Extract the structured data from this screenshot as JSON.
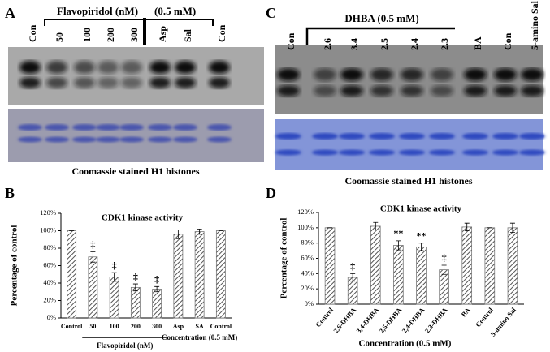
{
  "panels": {
    "a": "A",
    "b": "B",
    "c": "C",
    "d": "D"
  },
  "blot_a": {
    "lanes": [
      "Con",
      "50",
      "100",
      "200",
      "300",
      "Asp",
      "Sal",
      "Con"
    ],
    "group1": "Flavopiridol  (nM)",
    "group2": "(0.5 mM)",
    "caption": "Coomassie stained H1 histones"
  },
  "blot_c": {
    "lanes": [
      "Con",
      "2.6",
      "3.4",
      "2.5",
      "2.4",
      "2.3",
      "BA",
      "Con",
      "5-amino Sal"
    ],
    "group": "DHBA (0.5 mM)",
    "caption": "Coomassie stained H1 histones"
  },
  "chart_data": [
    {
      "type": "bar",
      "title": "CDK1 kinase activity",
      "ylabel": "Percentage of control",
      "categories": [
        "Control",
        "50",
        "100",
        "200",
        "300",
        "Asp",
        "SA",
        "Control"
      ],
      "values": [
        100,
        70,
        47,
        35,
        33,
        96,
        99,
        100
      ],
      "errors": [
        0,
        6,
        5,
        4,
        3,
        5,
        3,
        0
      ],
      "annotations": [
        null,
        "‡",
        "‡",
        "‡",
        "‡",
        null,
        null,
        null
      ],
      "group_labels": [
        "Flavopiridol (nM)",
        "Concentration (0.5 mM)"
      ],
      "color": "#777777",
      "ylim": [
        0,
        120
      ],
      "yticks": [
        {
          "value": 0,
          "label": "0%"
        },
        {
          "value": 20,
          "label": "20%"
        },
        {
          "value": 40,
          "label": "40%"
        },
        {
          "value": 60,
          "label": "60%"
        },
        {
          "value": 80,
          "label": "80%"
        },
        {
          "value": 100,
          "label": "100%"
        },
        {
          "value": 120,
          "label": "120%"
        }
      ]
    },
    {
      "type": "bar",
      "title": "CDK1 kinase activity",
      "ylabel": "Percentage of control",
      "xlabel": "Concentration (0.5 mM)",
      "categories": [
        "Control",
        "2,6-DHBA",
        "3,4-DHBA",
        "2,5-DHBA",
        "2,4-DHBA",
        "2,3-DHBA",
        "BA",
        "Control",
        "5-amino Sal"
      ],
      "values": [
        100,
        35,
        102,
        77,
        75,
        45,
        101,
        100,
        100
      ],
      "errors": [
        0,
        5,
        5,
        6,
        5,
        6,
        5,
        0,
        6
      ],
      "annotations": [
        null,
        "‡",
        null,
        "**",
        "**",
        "‡",
        null,
        null,
        null
      ],
      "color": "#777777",
      "ylim": [
        0,
        120
      ],
      "yticks": [
        {
          "value": 0,
          "label": "0%"
        },
        {
          "value": 20,
          "label": "20%"
        },
        {
          "value": 40,
          "label": "40%"
        },
        {
          "value": 60,
          "label": "60%"
        },
        {
          "value": 80,
          "label": "80%"
        },
        {
          "value": 100,
          "label": "100%"
        },
        {
          "value": 120,
          "label": "120%"
        }
      ]
    }
  ]
}
